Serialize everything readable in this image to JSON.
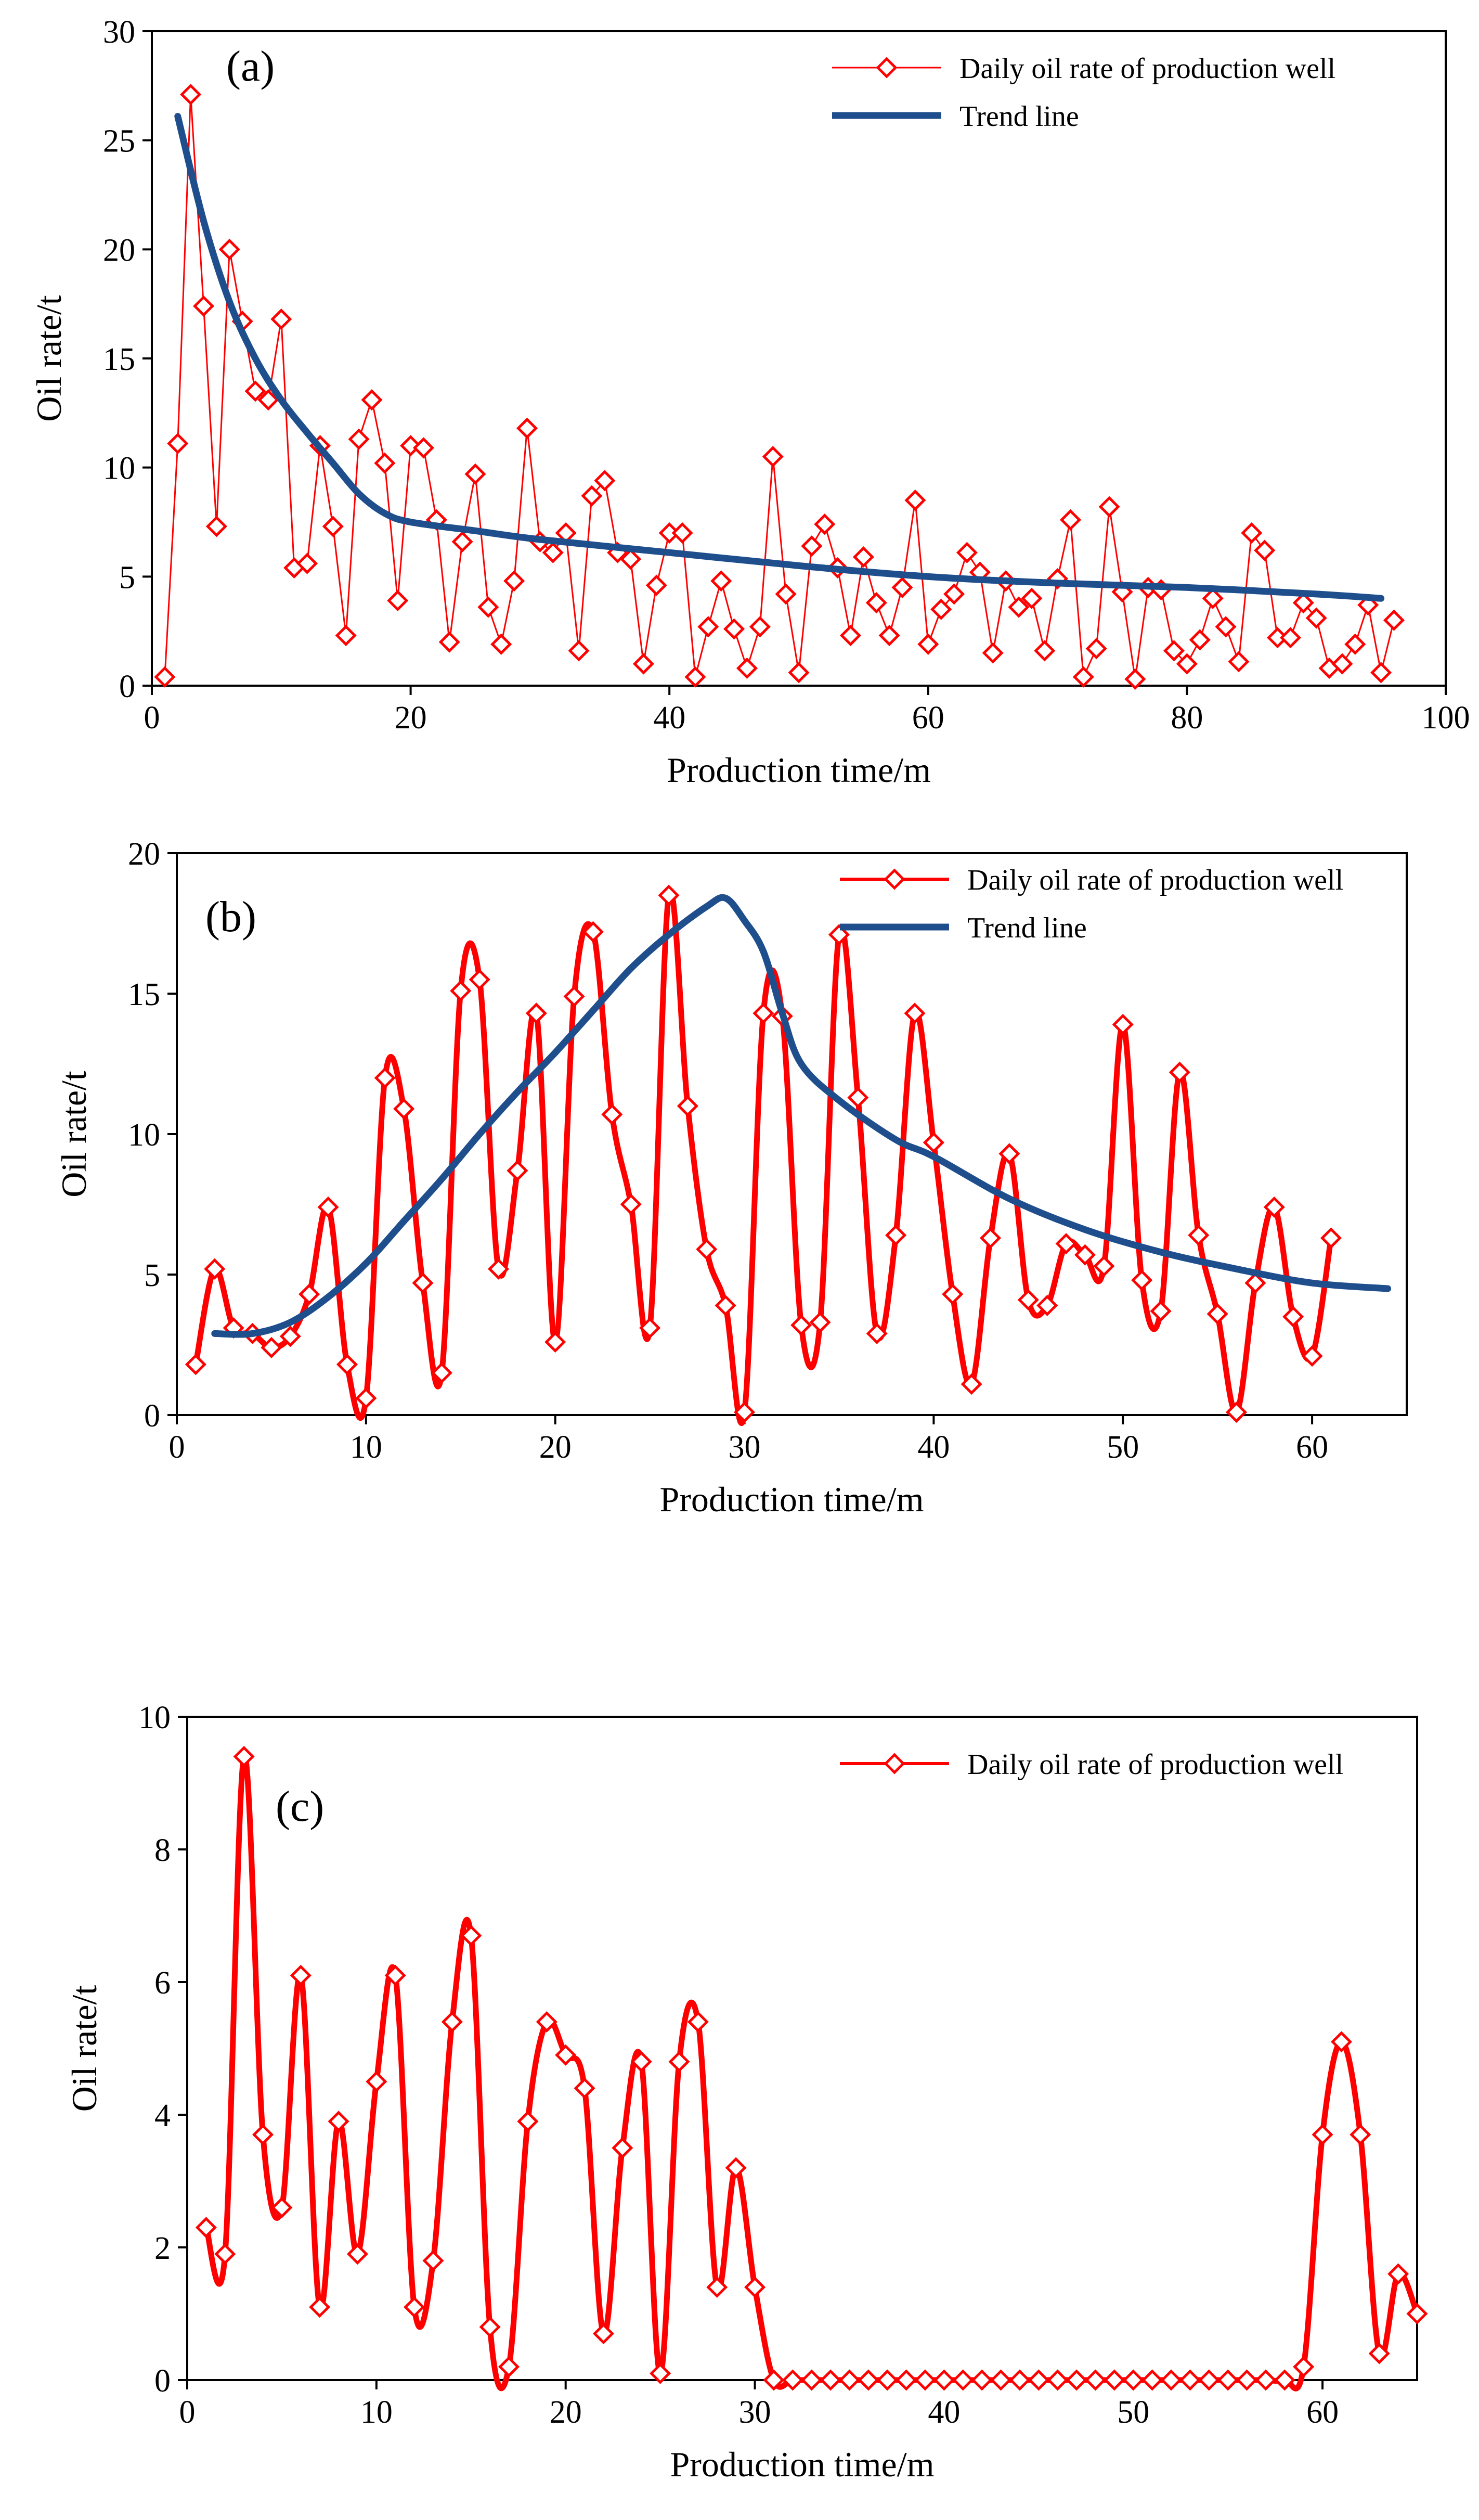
{
  "chart_data": [
    {
      "panel": "(a)",
      "type": "line",
      "xlabel": "Production time/m",
      "ylabel": "Oil rate/t",
      "xlim": [
        0,
        100
      ],
      "ylim": [
        0,
        30
      ],
      "xticks": [
        0,
        20,
        40,
        60,
        80,
        100
      ],
      "yticks": [
        0,
        5,
        10,
        15,
        20,
        25,
        30
      ],
      "legend_position": "top-right",
      "grid": false,
      "colors": {
        "daily": "#ff0000",
        "trend": "#1f4e8c"
      },
      "series": [
        {
          "name": "Daily oil rate of production well",
          "style": "line-diamond",
          "x": [
            1,
            2,
            3,
            4,
            5,
            6,
            7,
            8,
            9,
            10,
            11,
            12,
            13,
            14,
            15,
            16,
            17,
            18,
            19,
            20,
            21,
            22,
            23,
            24,
            25,
            26,
            27,
            28,
            29,
            30,
            31,
            32,
            33,
            34,
            35,
            36,
            37,
            38,
            39,
            40,
            41,
            42,
            43,
            44,
            45,
            46,
            47,
            48,
            49,
            50,
            51,
            52,
            53,
            54,
            55,
            56,
            57,
            58,
            59,
            60,
            61,
            62,
            63,
            64,
            65,
            66,
            67,
            68,
            69,
            70,
            71,
            72,
            73,
            74,
            75,
            76,
            77,
            78,
            79,
            80,
            81,
            82,
            83,
            84,
            85,
            86,
            87,
            88,
            89,
            90,
            91,
            92,
            93,
            94,
            95,
            96
          ],
          "y": [
            0.4,
            11.1,
            27.1,
            17.4,
            7.3,
            20,
            16.7,
            13.5,
            13.1,
            16.8,
            5.4,
            5.6,
            11,
            7.3,
            2.3,
            11.3,
            13.1,
            10.2,
            3.9,
            11,
            10.9,
            7.6,
            2,
            6.6,
            9.7,
            3.6,
            1.9,
            4.8,
            11.8,
            6.6,
            6.1,
            7,
            1.6,
            8.7,
            9.4,
            6.1,
            5.8,
            1,
            4.6,
            7,
            7,
            0.4,
            2.7,
            4.8,
            2.6,
            0.8,
            2.7,
            10.5,
            4.2,
            0.6,
            6.4,
            7.4,
            5.4,
            2.3,
            5.9,
            3.8,
            2.3,
            4.5,
            8.5,
            1.9,
            3.5,
            4.2,
            6.1,
            5.2,
            1.5,
            4.8,
            3.6,
            4,
            1.6,
            4.9,
            7.6,
            0.4,
            1.7,
            8.2,
            4.3,
            0.3,
            4.5,
            4.4,
            1.6,
            1,
            2.1,
            4,
            2.7,
            1.1,
            7,
            6.2,
            2.2,
            2.2,
            3.8,
            3.1,
            0.8,
            1,
            1.9,
            3.7,
            0.6,
            3
          ]
        },
        {
          "name": "Trend line",
          "style": "smooth-line",
          "x": [
            2,
            4,
            6,
            8,
            10,
            12,
            14,
            16,
            18,
            20,
            25,
            30,
            40,
            50,
            60,
            70,
            80,
            90,
            95
          ],
          "y": [
            26.1,
            21.3,
            17.6,
            15.0,
            13.1,
            11.6,
            10.2,
            8.8,
            7.9,
            7.5,
            7.1,
            6.7,
            6.1,
            5.5,
            5.0,
            4.7,
            4.5,
            4.2,
            4.0
          ]
        }
      ]
    },
    {
      "panel": "(b)",
      "type": "line",
      "xlabel": "Production time/m",
      "ylabel": "Oil rate/t",
      "xlim": [
        0,
        65
      ],
      "ylim": [
        0,
        20
      ],
      "xticks": [
        0,
        10,
        20,
        30,
        40,
        50,
        60
      ],
      "yticks": [
        0,
        5,
        10,
        15,
        20
      ],
      "legend_position": "top-right",
      "grid": false,
      "colors": {
        "daily": "#ff0000",
        "trend": "#1f4e8c"
      },
      "series": [
        {
          "name": "Daily oil rate of production well",
          "style": "smooth-diamond",
          "x": [
            1,
            2,
            3,
            4,
            5,
            6,
            7,
            8,
            9,
            10,
            11,
            12,
            13,
            14,
            15,
            16,
            17,
            18,
            19,
            20,
            21,
            22,
            23,
            24,
            25,
            26,
            27,
            28,
            29,
            30,
            31,
            32,
            33,
            34,
            35,
            36,
            37,
            38,
            39,
            40,
            41,
            42,
            43,
            44,
            45,
            46,
            47,
            48,
            49,
            50,
            51,
            52,
            53,
            54,
            55,
            56,
            57,
            58,
            59,
            60,
            61
          ],
          "y": [
            1.8,
            5.2,
            3.1,
            2.9,
            2.4,
            2.8,
            4.3,
            7.4,
            1.8,
            0.6,
            12,
            10.9,
            4.7,
            1.5,
            15.1,
            15.5,
            5.2,
            8.7,
            14.3,
            2.6,
            14.9,
            17.2,
            10.7,
            7.5,
            3.1,
            18.5,
            11,
            5.9,
            3.9,
            0.1,
            14.3,
            14.2,
            3.2,
            3.3,
            17.1,
            11.3,
            2.9,
            6.4,
            14.3,
            9.7,
            4.3,
            1.1,
            6.3,
            9.3,
            4.1,
            3.9,
            6.1,
            5.7,
            5.3,
            13.9,
            4.8,
            3.7,
            12.2,
            6.4,
            3.6,
            0.1,
            4.7,
            7.4,
            3.5,
            2.1,
            6.3
          ]
        },
        {
          "name": "Trend line",
          "style": "smooth-line",
          "x": [
            2,
            4,
            6,
            8,
            10,
            12,
            14,
            16,
            18,
            20,
            22,
            24,
            26,
            28,
            29,
            30,
            31,
            32,
            33,
            35,
            38,
            40,
            44,
            48,
            52,
            56,
            60,
            64
          ],
          "y": [
            2.9,
            2.9,
            3.3,
            4.2,
            5.4,
            6.9,
            8.4,
            10.0,
            11.5,
            12.9,
            14.4,
            15.9,
            17.1,
            18.1,
            18.4,
            17.6,
            16.5,
            14.3,
            12.5,
            11.2,
            9.8,
            9.2,
            7.7,
            6.6,
            5.8,
            5.2,
            4.7,
            4.5
          ]
        }
      ]
    },
    {
      "panel": "(c)",
      "type": "line",
      "xlabel": "Production time/m",
      "ylabel": "Oil rate/t",
      "xlim": [
        0,
        65
      ],
      "ylim": [
        0,
        10
      ],
      "xticks": [
        0,
        10,
        20,
        30,
        40,
        50,
        60
      ],
      "yticks": [
        0,
        2,
        4,
        6,
        8,
        10
      ],
      "legend_position": "top-right",
      "grid": false,
      "colors": {
        "daily": "#ff0000"
      },
      "series": [
        {
          "name": "Daily oil rate of production well",
          "style": "smooth-diamond",
          "x": [
            1,
            2,
            3,
            4,
            5,
            6,
            7,
            8,
            9,
            10,
            11,
            12,
            13,
            14,
            15,
            16,
            17,
            18,
            19,
            20,
            21,
            22,
            23,
            24,
            25,
            26,
            27,
            28,
            29,
            30,
            31,
            32,
            33,
            34,
            35,
            36,
            37,
            38,
            39,
            40,
            41,
            42,
            43,
            44,
            45,
            46,
            47,
            48,
            49,
            50,
            51,
            52,
            53,
            54,
            55,
            56,
            57,
            58,
            59,
            60,
            61,
            62,
            63,
            64,
            65
          ],
          "y": [
            2.3,
            1.9,
            9.4,
            3.7,
            2.6,
            6.1,
            1.1,
            3.9,
            1.9,
            4.5,
            6.1,
            1.1,
            1.8,
            5.4,
            6.7,
            0.8,
            0.2,
            3.9,
            5.4,
            4.9,
            4.4,
            0.7,
            3.5,
            4.8,
            0.1,
            4.8,
            5.4,
            1.4,
            3.2,
            1.4,
            0,
            0,
            0,
            0,
            0,
            0,
            0,
            0,
            0,
            0,
            0,
            0,
            0,
            0,
            0,
            0,
            0,
            0,
            0,
            0,
            0,
            0,
            0,
            0,
            0,
            0,
            0,
            0,
            0.2,
            3.7,
            5.1,
            3.7,
            0.4,
            1.6,
            1
          ]
        }
      ]
    }
  ]
}
